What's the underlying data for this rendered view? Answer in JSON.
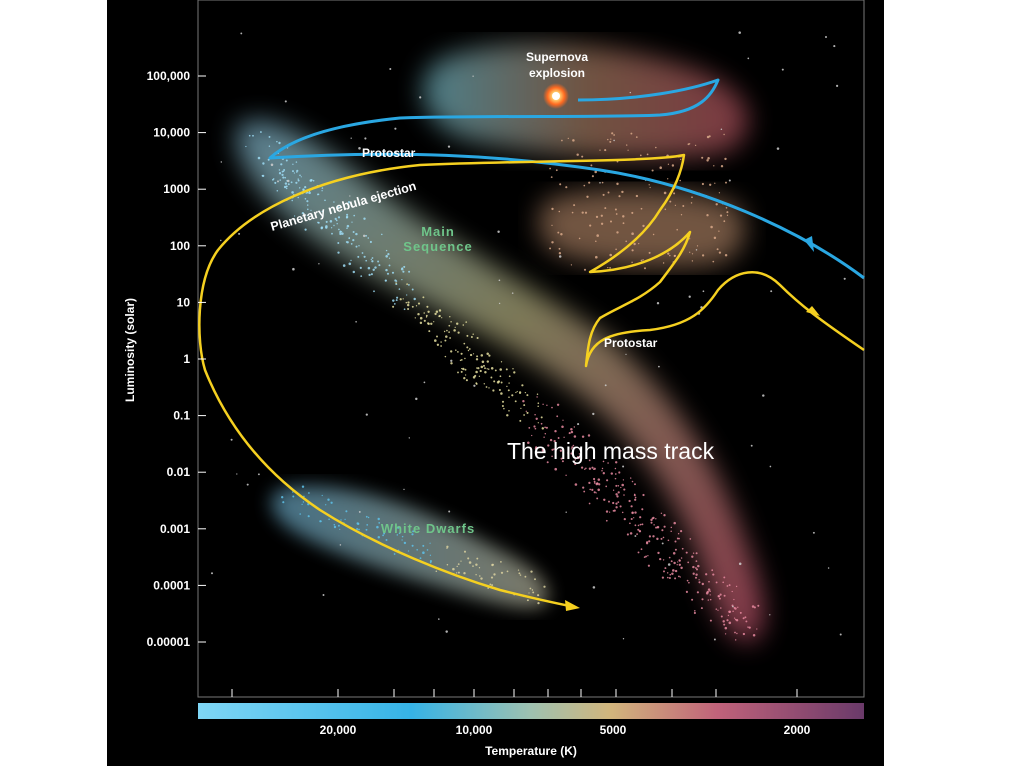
{
  "caption": "The high mass track",
  "colors": {
    "high_mass_track": "#2aa7e2",
    "low_mass_track": "#f5d020",
    "region_label": "#6fc58a",
    "background": "#000000"
  },
  "y_axis": {
    "label": "Luminosity (solar)",
    "scale": "log",
    "ticks": [
      "100,000",
      "10,000",
      "1000",
      "100",
      "10",
      "1",
      "0.1",
      "0.01",
      "0.001",
      "0.0001",
      "0.00001"
    ]
  },
  "x_axis": {
    "label": "Temperature (K)",
    "scale": "log-reversed",
    "ticks": [
      "20,000",
      "10,000",
      "5000",
      "2000"
    ]
  },
  "regions": {
    "main_sequence": [
      "Main",
      "Sequence"
    ],
    "white_dwarfs": "White Dwarfs"
  },
  "annotations": {
    "supernova": [
      "Supernova",
      "explosion"
    ],
    "protostar_high": "Protostar",
    "protostar_low": "Protostar",
    "planetary_nebula": "Planetary nebula ejection"
  }
}
